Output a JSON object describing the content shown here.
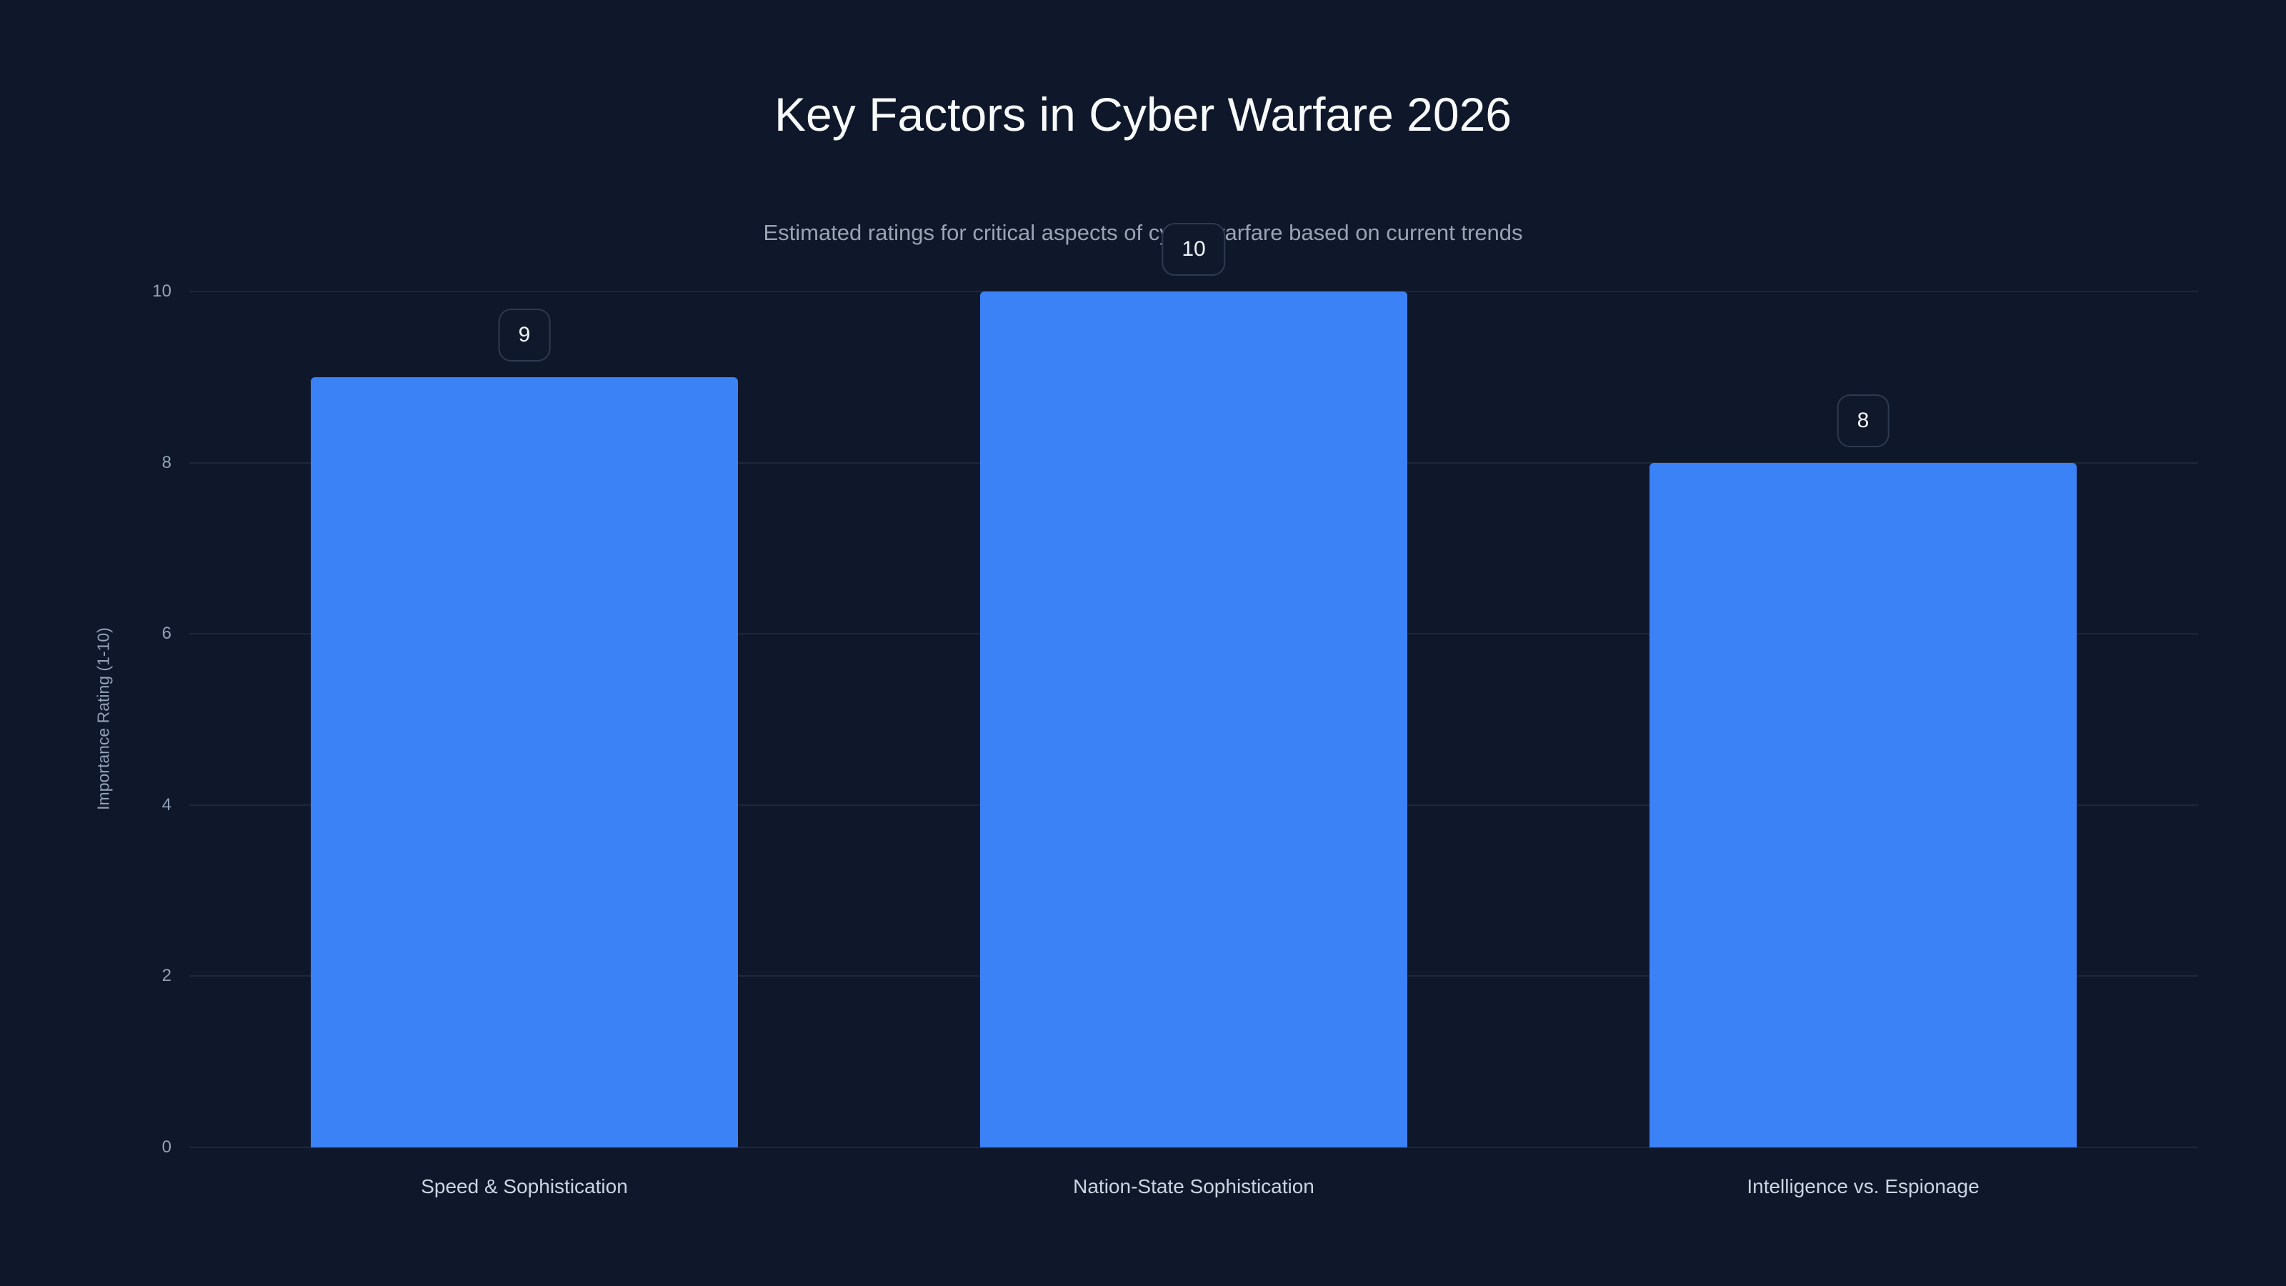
{
  "chart_data": {
    "type": "bar",
    "title": "Key Factors in Cyber Warfare 2026",
    "subtitle": "Estimated ratings for critical aspects of cyber warfare based on current trends",
    "categories": [
      "Speed & Sophistication",
      "Nation-State Sophistication",
      "Intelligence vs. Espionage"
    ],
    "values": [
      9,
      10,
      8
    ],
    "data_labels": [
      "9",
      "10",
      "8"
    ],
    "xlabel": "",
    "ylabel": "Importance Rating (1-10)",
    "ylim": [
      0,
      10
    ],
    "yticks": [
      0,
      2,
      4,
      6,
      8,
      10
    ],
    "grid": true,
    "legend": false,
    "bar_color": "#3b82f6",
    "background_color": "#0f172a",
    "grid_color": "rgba(148,163,184,0.12)",
    "title_color": "#f8fafc",
    "subtitle_color": "#9aa4b2",
    "tick_label_color": "#94a3b8",
    "category_label_color": "#cbd5e1",
    "badge_text_color": "#f1f5f9",
    "badge_border_color": "#2d3a50"
  }
}
